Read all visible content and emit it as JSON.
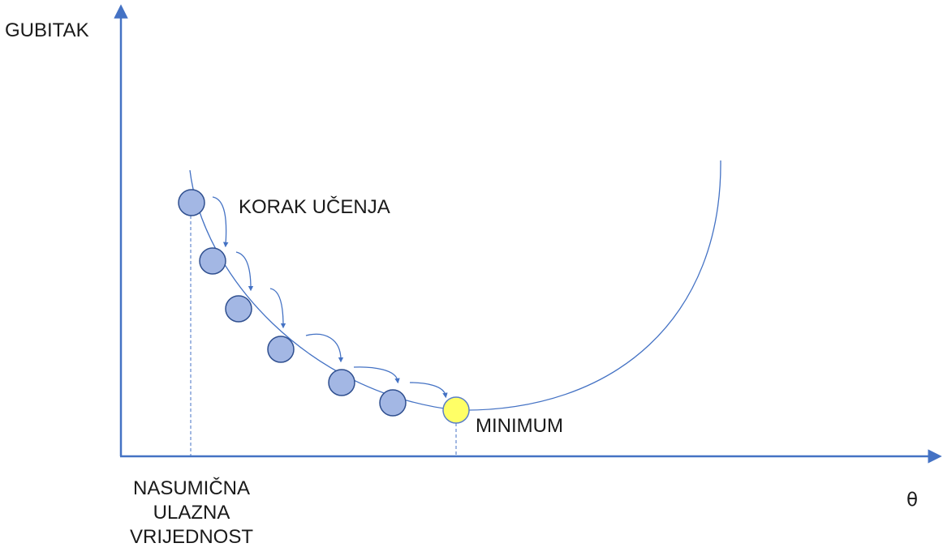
{
  "labels": {
    "y_axis": "GUBITAK",
    "x_axis": "θ",
    "learning_step": "KORAK UČENJA",
    "minimum": "MINIMUM",
    "random_start_line1": "NASUMIČNA",
    "random_start_line2": "ULAZNA",
    "random_start_line3": "VRIJEDNOST"
  },
  "colors": {
    "axis": "#4472c4",
    "curve": "#4472c4",
    "step_point_fill": "#a3b7e4",
    "step_point_stroke": "#2f4f8f",
    "minimum_fill": "#ffff66",
    "minimum_stroke": "#5b7fc7",
    "text": "#1a1a1a"
  }
}
